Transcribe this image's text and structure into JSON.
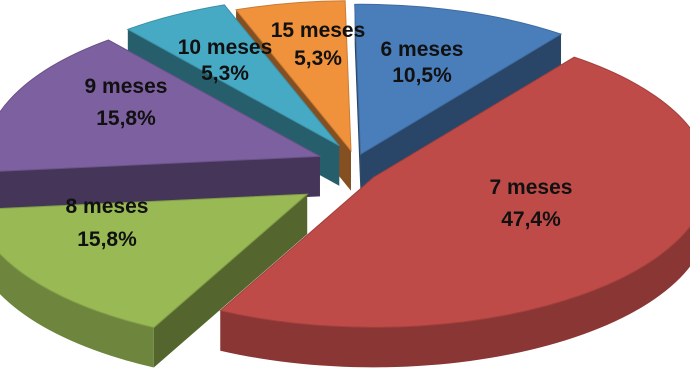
{
  "chart_data": {
    "type": "pie",
    "style": "3d-exploded",
    "title": "",
    "slices": [
      {
        "name": "6 meses",
        "percent_label": "10,5%",
        "value": 10.5,
        "color": "#4a7ebb"
      },
      {
        "name": "7 meses",
        "percent_label": "47,4%",
        "value": 47.4,
        "color": "#be4b48"
      },
      {
        "name": "8 meses",
        "percent_label": "15,8%",
        "value": 15.8,
        "color": "#98b954"
      },
      {
        "name": "9 meses",
        "percent_label": "15,8%",
        "value": 15.8,
        "color": "#7d60a0"
      },
      {
        "name": "10 meses",
        "percent_label": "5,3%",
        "value": 5.3,
        "color": "#46aac5"
      },
      {
        "name": "15 meses",
        "percent_label": "5,3%",
        "value": 5.3,
        "color": "#f0913c"
      }
    ]
  }
}
